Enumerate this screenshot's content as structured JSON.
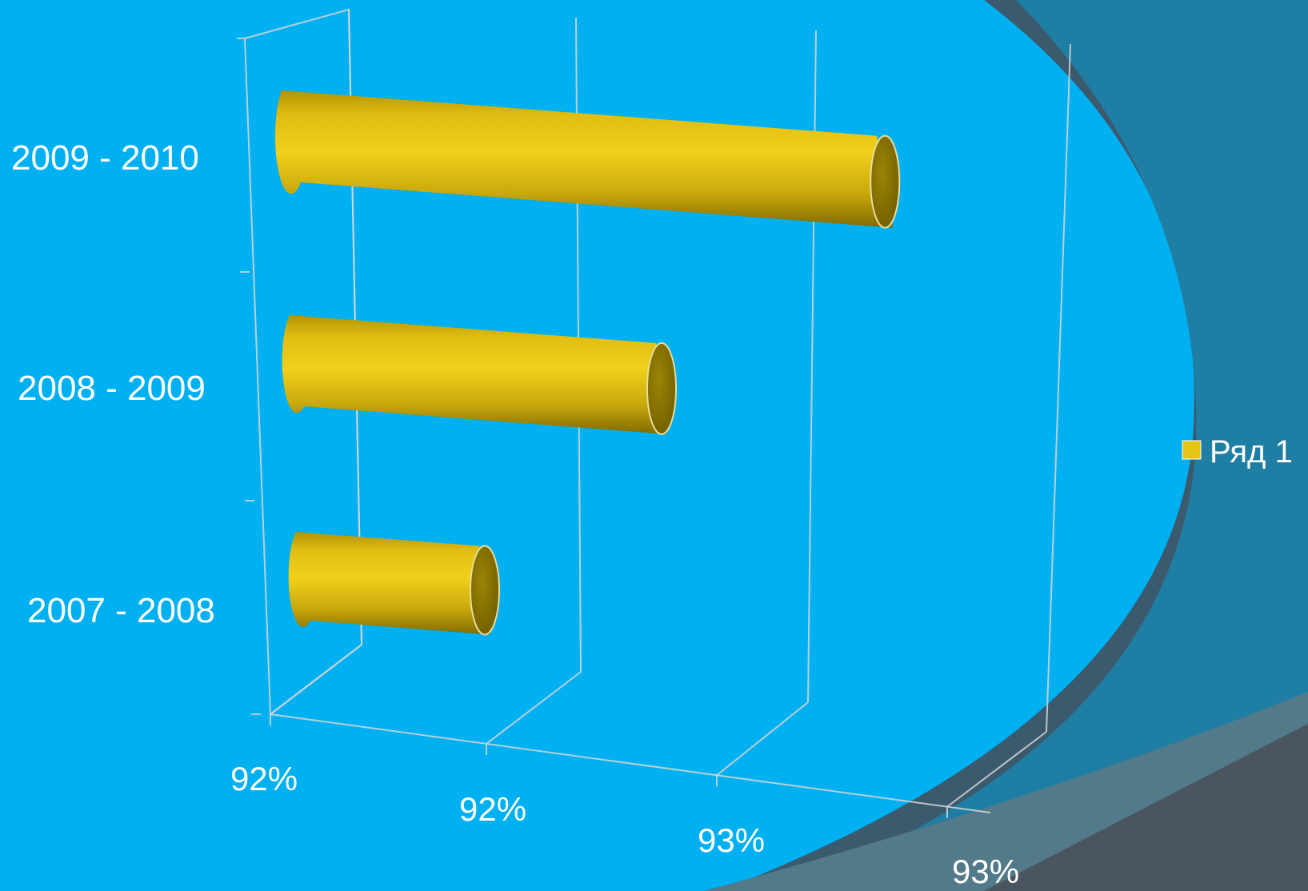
{
  "chart_data": {
    "type": "bar",
    "orientation": "horizontal",
    "style": "3d-cylinder",
    "categories": [
      "2009 - 2010",
      "2008 - 2009",
      "2007 - 2008"
    ],
    "series": [
      {
        "name": "Ряд 1",
        "values": [
          93.1,
          92.6,
          92.2
        ],
        "color": "#e6c417"
      }
    ],
    "x_ticks": [
      "92%",
      "92%",
      "93%",
      "93%"
    ],
    "xlim": [
      91.8,
      93.4
    ],
    "grid": true,
    "legend": {
      "position": "right",
      "label": "Ряд 1"
    }
  },
  "colors": {
    "background": "#00b0f0",
    "decor_band": "#1f7ea3",
    "decor_corner": "#4a5560",
    "bar_front": "#e6c417",
    "bar_cap": "#8a7500"
  }
}
